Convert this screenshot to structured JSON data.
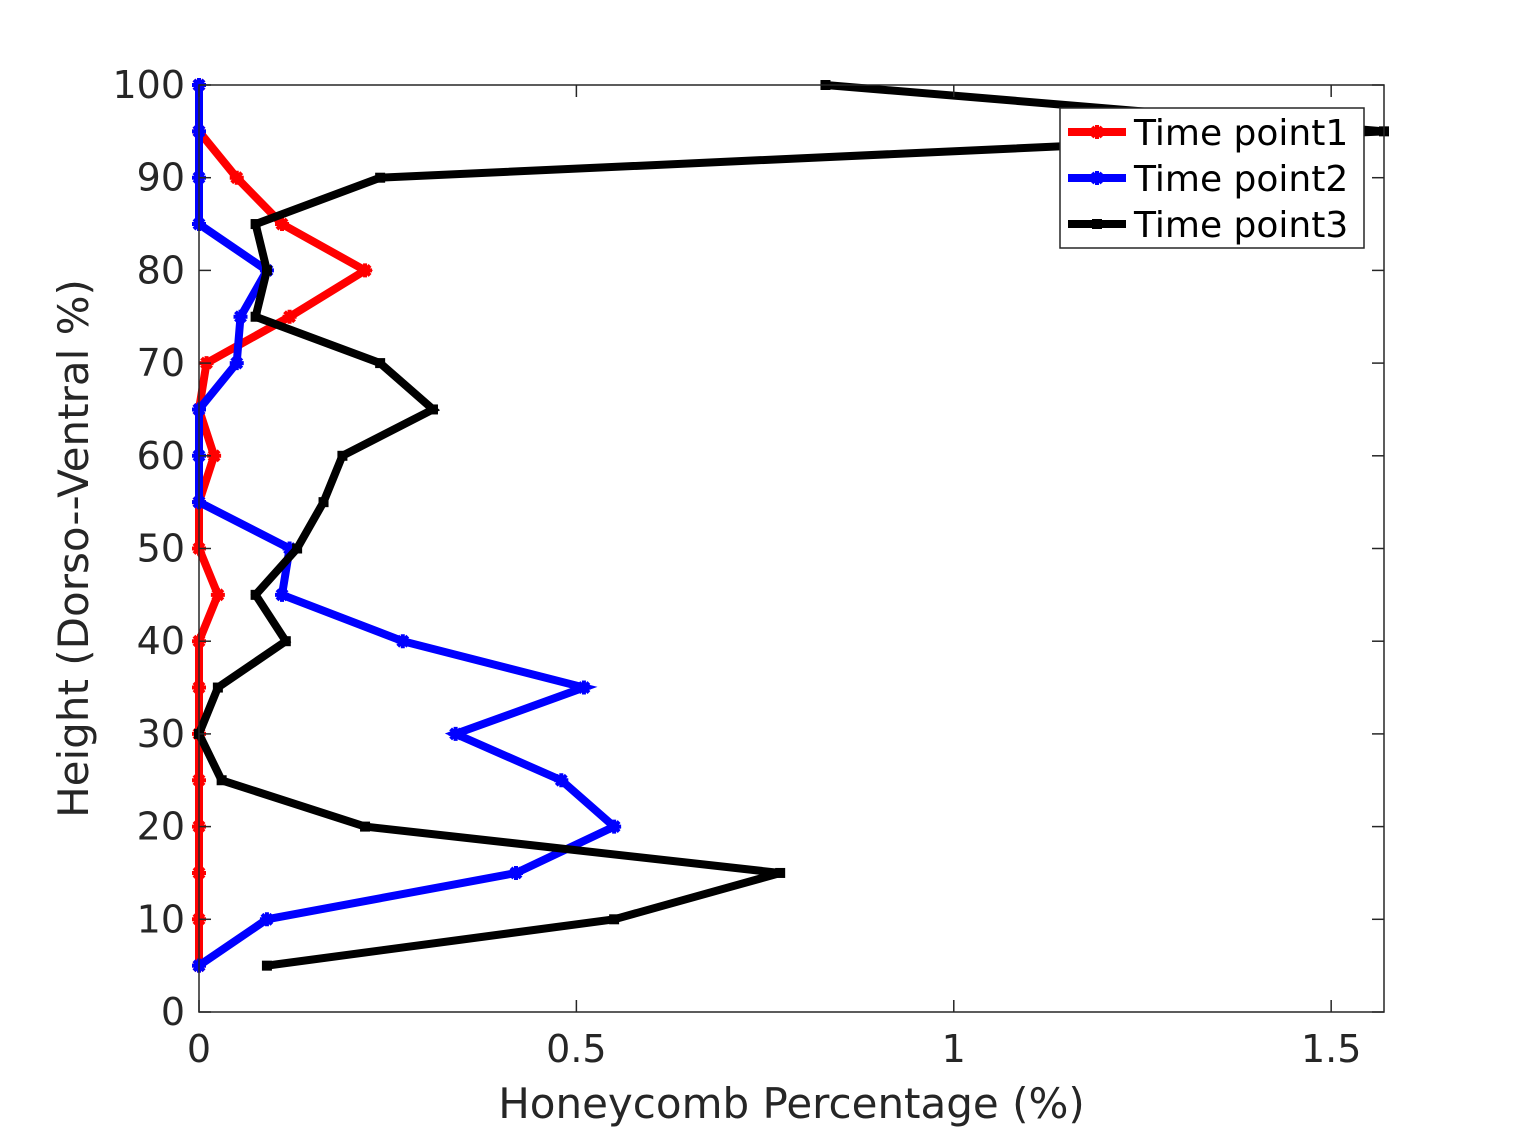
{
  "chart_data": {
    "type": "line",
    "title": "",
    "xlabel": "Honeycomb Percentage (%)",
    "ylabel": "Height (Dorso--Ventral %)",
    "xlim": [
      0,
      1.57
    ],
    "ylim": [
      0,
      100
    ],
    "xticks": [
      0,
      0.5,
      1,
      1.5
    ],
    "xtick_labels": [
      "0",
      "0.5",
      "1",
      "1.5"
    ],
    "yticks": [
      0,
      10,
      20,
      30,
      40,
      50,
      60,
      70,
      80,
      90,
      100
    ],
    "ytick_labels": [
      "0",
      "10",
      "20",
      "30",
      "40",
      "50",
      "60",
      "70",
      "80",
      "90",
      "100"
    ],
    "grid": false,
    "legend_position": "top-right",
    "series": [
      {
        "name": "Time point1",
        "color": "#ff0000",
        "marker": "star",
        "x": [
          0.0,
          0.0,
          0.0,
          0.0,
          0.0,
          0.0,
          0.0,
          0.0,
          0.025,
          0.0,
          0.0,
          0.02,
          0.0,
          0.01,
          0.12,
          0.22,
          0.11,
          0.05,
          0.0,
          0.0
        ],
        "y": [
          5,
          10,
          15,
          20,
          25,
          30,
          35,
          40,
          45,
          50,
          55,
          60,
          65,
          70,
          75,
          80,
          85,
          90,
          95,
          100
        ]
      },
      {
        "name": "Time point2",
        "color": "#0000ff",
        "marker": "star",
        "x": [
          0.0,
          0.09,
          0.42,
          0.55,
          0.48,
          0.34,
          0.51,
          0.27,
          0.11,
          0.12,
          0.0,
          0.0,
          0.0,
          0.05,
          0.055,
          0.09,
          0.0,
          0.0,
          0.0,
          0.0
        ],
        "y": [
          5,
          10,
          15,
          20,
          25,
          30,
          35,
          40,
          45,
          50,
          55,
          60,
          65,
          70,
          75,
          80,
          85,
          90,
          95,
          100
        ]
      },
      {
        "name": "Time point3",
        "color": "#000000",
        "marker": "square",
        "x": [
          0.09,
          0.55,
          0.77,
          0.22,
          0.03,
          0.0,
          0.025,
          0.115,
          0.075,
          0.13,
          0.165,
          0.19,
          0.31,
          0.24,
          0.075,
          0.09,
          0.075,
          0.24,
          1.57,
          0.83
        ],
        "y": [
          5,
          10,
          15,
          20,
          25,
          30,
          35,
          40,
          45,
          50,
          55,
          60,
          65,
          70,
          75,
          80,
          85,
          90,
          95,
          100
        ]
      }
    ]
  }
}
